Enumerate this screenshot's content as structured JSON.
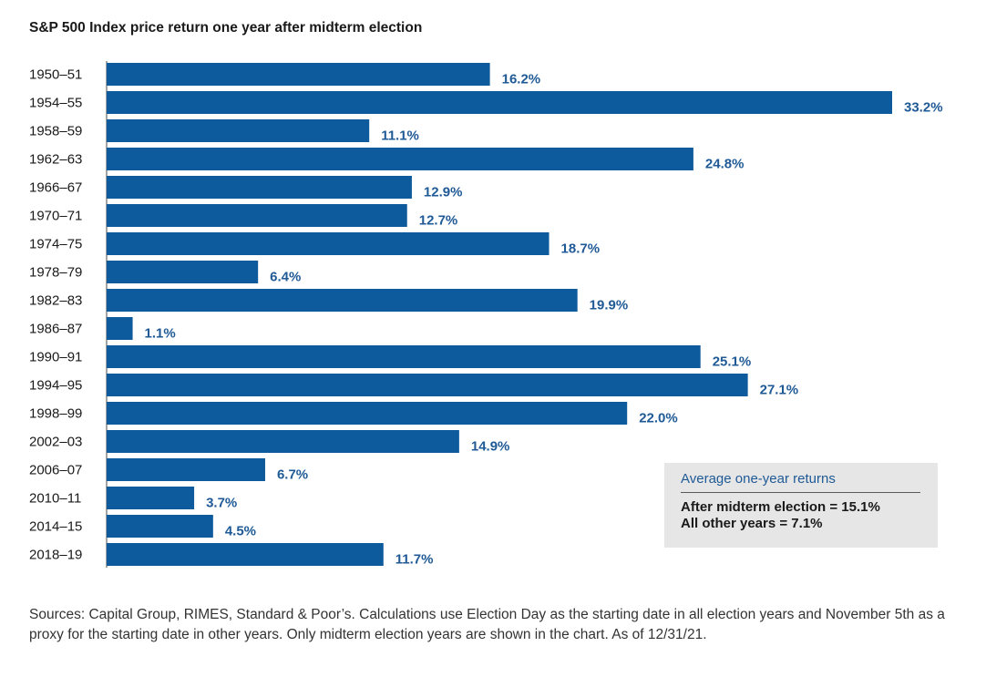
{
  "chart_data": {
    "type": "bar",
    "orientation": "horizontal",
    "title": "S&P 500 Index price return one year after midterm election",
    "categories": [
      "1950–51",
      "1954–55",
      "1958–59",
      "1962–63",
      "1966–67",
      "1970–71",
      "1974–75",
      "1978–79",
      "1982–83",
      "1986–87",
      "1990–91",
      "1994–95",
      "1998–99",
      "2002–03",
      "2006–07",
      "2010–11",
      "2014–15",
      "2018–19"
    ],
    "values": [
      16.2,
      33.2,
      11.1,
      24.8,
      12.9,
      12.7,
      18.7,
      6.4,
      19.9,
      1.1,
      25.1,
      27.1,
      22.0,
      14.9,
      6.7,
      3.7,
      4.5,
      11.7
    ],
    "value_labels": [
      "16.2%",
      "33.2%",
      "11.1%",
      "24.8%",
      "12.9%",
      "12.7%",
      "18.7%",
      "6.4%",
      "19.9%",
      "1.1%",
      "25.1%",
      "27.1%",
      "22.0%",
      "14.9%",
      "6.7%",
      "3.7%",
      "4.5%",
      "11.7%"
    ],
    "xlabel": "",
    "ylabel": "",
    "xlim": [
      0,
      33.2
    ],
    "grid": false,
    "legend": "none",
    "bar_color": "#0d5a9c",
    "label_color": "#1f5a96"
  },
  "summary_box": {
    "title": "Average one-year returns",
    "lines": [
      "After midterm election = 15.1%",
      "All other years = 7.1%"
    ]
  },
  "footnote": "Sources: Capital Group, RIMES, Standard & Poor’s. Calculations use Election Day as the starting date in all election years and November 5th as a proxy for the starting date in other years. Only midterm election years are shown in the chart. As of 12/31/21."
}
